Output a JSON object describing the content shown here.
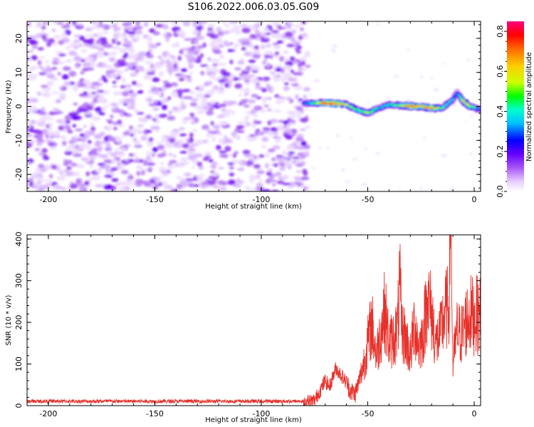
{
  "title": "S106.2022.006.03.05.G09",
  "chart_data": [
    {
      "type": "heatmap",
      "xlabel": "Height of straight line (km)",
      "ylabel": "Frequency (Hz)",
      "xlim": [
        -210,
        3
      ],
      "ylim": [
        -25,
        25
      ],
      "xticks": [
        -200,
        -150,
        -100,
        -50,
        0
      ],
      "yticks": [
        -20,
        -10,
        0,
        10,
        20
      ],
      "noise_region": {
        "x_range": [
          -210,
          -80
        ],
        "y_range": [
          -25,
          25
        ],
        "typical_amplitude": 0.05
      },
      "signal_track": {
        "description_x": [
          -80,
          -75,
          -70,
          -65,
          -60,
          -55,
          -50,
          -45,
          -40,
          -35,
          -30,
          -25,
          -20,
          -15,
          -10,
          -8,
          -5,
          -2,
          3
        ],
        "frequency": [
          1.0,
          1.0,
          1.0,
          0.8,
          0.5,
          -1.0,
          -2.0,
          -0.5,
          0.5,
          0.3,
          0.0,
          0.0,
          -0.5,
          -0.5,
          2.0,
          4.0,
          1.5,
          0.0,
          -1.0
        ],
        "peak_amplitude": [
          0.3,
          0.5,
          0.85,
          0.85,
          0.6,
          0.5,
          0.6,
          0.4,
          0.45,
          0.55,
          0.85,
          0.7,
          0.85,
          0.5,
          0.4,
          0.3,
          0.75,
          0.6,
          0.3
        ]
      },
      "colorbar": {
        "label": "Normalized spectral amplitude",
        "range": [
          0.0,
          0.85
        ],
        "ticks": [
          0.0,
          0.2,
          0.4,
          0.6,
          0.8
        ],
        "colormap": [
          "#ffffff",
          "#e6ccff",
          "#a855f7",
          "#6600ff",
          "#0000ff",
          "#00bfff",
          "#00ffcc",
          "#00ff00",
          "#ccff00",
          "#ffcc00",
          "#ff6600",
          "#ff0000",
          "#ff007f"
        ]
      }
    },
    {
      "type": "line",
      "xlabel": "Height of straight line (km)",
      "ylabel": "SNR (10 * v/v)",
      "xlim": [
        -210,
        3
      ],
      "ylim": [
        0,
        410
      ],
      "xticks": [
        -200,
        -150,
        -100,
        -50,
        0
      ],
      "yticks": [
        0,
        100,
        200,
        300,
        400
      ],
      "series": [
        {
          "color": "#e8302a",
          "x": [
            -210,
            -200,
            -190,
            -180,
            -170,
            -160,
            -150,
            -140,
            -130,
            -120,
            -110,
            -100,
            -90,
            -80,
            -75,
            -72,
            -70,
            -68,
            -65,
            -62,
            -60,
            -58,
            -56,
            -54,
            -52,
            -50,
            -48,
            -46,
            -44,
            -42,
            -40,
            -38,
            -36,
            -35,
            -34,
            -32,
            -30,
            -28,
            -26,
            -24,
            -22,
            -20,
            -18,
            -16,
            -14,
            -12,
            -11,
            -10,
            -8,
            -6,
            -4,
            -2,
            0,
            3
          ],
          "y": [
            8,
            10,
            8,
            9,
            8,
            10,
            9,
            8,
            9,
            10,
            9,
            8,
            9,
            8,
            12,
            40,
            60,
            45,
            90,
            70,
            55,
            35,
            28,
            60,
            100,
            150,
            200,
            120,
            175,
            230,
            150,
            160,
            185,
            290,
            180,
            160,
            120,
            200,
            140,
            170,
            260,
            220,
            150,
            170,
            220,
            240,
            415,
            100,
            180,
            170,
            200,
            220,
            215,
            220
          ]
        }
      ]
    }
  ]
}
